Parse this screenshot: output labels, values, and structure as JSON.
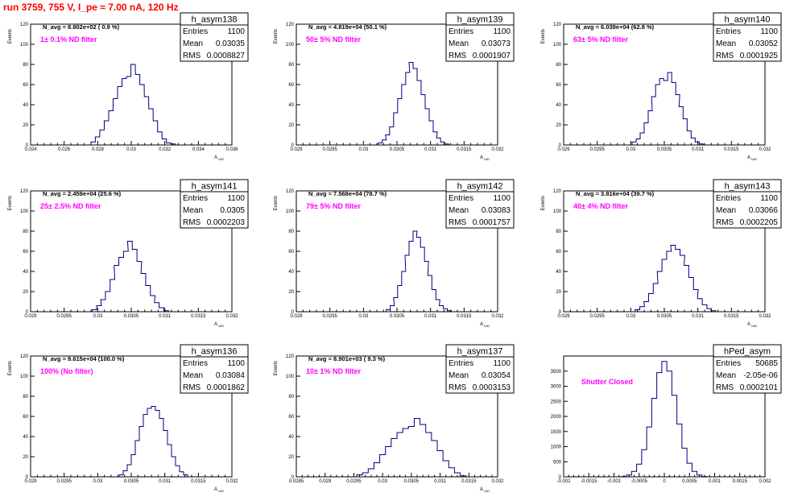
{
  "title": "run 3759,   755 V, I_pe ≈ 7.00 nA, 120 Hz",
  "colors": {
    "title": "#ff0000",
    "annotation": "#ff00ff",
    "hist": "#000080",
    "frame": "#000000"
  },
  "chart_data": [
    {
      "type": "histogram",
      "name": "h_asym138",
      "ylabel": "Events",
      "xlabel": "A_UID",
      "navg": "N_avg = 8.802e+02 ( 0.9 %)",
      "filter": "1± 0.1% ND filter",
      "stats": [
        [
          "Entries",
          "1100"
        ],
        [
          "Mean",
          "0.03035"
        ],
        [
          "RMS",
          "0.0008827"
        ]
      ],
      "xlim": [
        0.024,
        0.036
      ],
      "ylim": [
        0,
        120
      ],
      "xticks": [
        "0.024",
        "0.026",
        "0.028",
        "0.03",
        "0.032",
        "0.034",
        "0.036"
      ],
      "yticks": [
        "0",
        "20",
        "40",
        "60",
        "80",
        "100",
        "120"
      ],
      "x": [
        0.02773,
        0.02799,
        0.02826,
        0.02852,
        0.02879,
        0.02905,
        0.02932,
        0.02958,
        0.02985,
        0.03011,
        0.03038,
        0.03064,
        0.03091,
        0.03117,
        0.03144,
        0.0317,
        0.03197,
        0.03223,
        0.0325
      ],
      "values": [
        3,
        8,
        15,
        24,
        34,
        46,
        58,
        66,
        68,
        80,
        70,
        60,
        48,
        36,
        24,
        13,
        6,
        2,
        1
      ]
    },
    {
      "type": "histogram",
      "name": "h_asym139",
      "ylabel": "Events",
      "xlabel": "A_UID",
      "navg": "N_avg = 4.819e+04 (50.1 %)",
      "filter": "50± 5% ND filter",
      "stats": [
        [
          "Entries",
          "1100"
        ],
        [
          "Mean",
          "0.03073"
        ],
        [
          "RMS",
          "0.0001907"
        ]
      ],
      "xlim": [
        0.029,
        0.032
      ],
      "ylim": [
        0,
        120
      ],
      "xticks": [
        "0.029",
        "0.0295",
        "0.03",
        "0.0305",
        "0.031",
        "0.0315",
        "0.032"
      ],
      "yticks": [
        "0",
        "20",
        "40",
        "60",
        "80",
        "100",
        "120"
      ],
      "x": [
        0.03025,
        0.03031,
        0.03036,
        0.03042,
        0.03048,
        0.03054,
        0.0306,
        0.03066,
        0.03071,
        0.03077,
        0.03083,
        0.03089,
        0.03095,
        0.03101,
        0.03107,
        0.03112,
        0.03118,
        0.03124
      ],
      "values": [
        2,
        5,
        10,
        18,
        32,
        46,
        60,
        72,
        82,
        76,
        64,
        50,
        36,
        24,
        13,
        7,
        3,
        1
      ]
    },
    {
      "type": "histogram",
      "name": "h_asym140",
      "ylabel": "Events",
      "xlabel": "A_UID",
      "navg": "N_avg = 6.039e+04 (62.8 %)",
      "filter": "63± 5% ND filter",
      "stats": [
        [
          "Entries",
          "1100"
        ],
        [
          "Mean",
          "0.03052"
        ],
        [
          "RMS",
          "0.0001925"
        ]
      ],
      "xlim": [
        0.029,
        0.032
      ],
      "ylim": [
        0,
        120
      ],
      "xticks": [
        "0.029",
        "0.0295",
        "0.03",
        "0.0305",
        "0.031",
        "0.0315",
        "0.032"
      ],
      "yticks": [
        "0",
        "20",
        "40",
        "60",
        "80",
        "100",
        "120"
      ],
      "x": [
        0.03005,
        0.03011,
        0.03017,
        0.03023,
        0.03029,
        0.03034,
        0.0304,
        0.03046,
        0.03052,
        0.03058,
        0.03064,
        0.0307,
        0.03075,
        0.03081,
        0.03087,
        0.03093,
        0.03099,
        0.03105
      ],
      "values": [
        3,
        6,
        12,
        22,
        34,
        48,
        60,
        66,
        64,
        72,
        62,
        50,
        38,
        26,
        14,
        7,
        3,
        1
      ]
    },
    {
      "type": "histogram",
      "name": "h_asym141",
      "ylabel": "Events",
      "xlabel": "A_UID",
      "navg": "N_avg = 2.459e+04 (25.6 %)",
      "filter": "25± 2.5% ND filter",
      "stats": [
        [
          "Entries",
          "1100"
        ],
        [
          "Mean",
          "0.0305"
        ],
        [
          "RMS",
          "0.0002203"
        ]
      ],
      "xlim": [
        0.029,
        0.032
      ],
      "ylim": [
        0,
        120
      ],
      "xticks": [
        "0.029",
        "0.0295",
        "0.03",
        "0.0305",
        "0.031",
        "0.0315",
        "0.032"
      ],
      "yticks": [
        "0",
        "20",
        "40",
        "60",
        "80",
        "100",
        "120"
      ],
      "x": [
        0.02995,
        0.03002,
        0.03008,
        0.03015,
        0.03022,
        0.03028,
        0.03035,
        0.03042,
        0.03048,
        0.03055,
        0.03062,
        0.03068,
        0.03075,
        0.03082,
        0.03088,
        0.03095,
        0.03102
      ],
      "values": [
        2,
        6,
        12,
        20,
        32,
        46,
        54,
        60,
        70,
        62,
        50,
        38,
        26,
        16,
        9,
        4,
        1
      ]
    },
    {
      "type": "histogram",
      "name": "h_asym142",
      "ylabel": "Events",
      "xlabel": "A_UID",
      "navg": "N_avg = 7.568e+04 (78.7 %)",
      "filter": "79± 5% ND filter",
      "stats": [
        [
          "Entries",
          "1100"
        ],
        [
          "Mean",
          "0.03083"
        ],
        [
          "RMS",
          "0.0001757"
        ]
      ],
      "xlim": [
        0.029,
        0.032
      ],
      "ylim": [
        0,
        120
      ],
      "xticks": [
        "0.029",
        "0.0295",
        "0.03",
        "0.0305",
        "0.031",
        "0.0315",
        "0.032"
      ],
      "yticks": [
        "0",
        "20",
        "40",
        "60",
        "80",
        "100",
        "120"
      ],
      "x": [
        0.03037,
        0.03043,
        0.03048,
        0.03054,
        0.0306,
        0.03065,
        0.03071,
        0.03077,
        0.03082,
        0.03088,
        0.03094,
        0.03099,
        0.03105,
        0.03111,
        0.03116,
        0.03122,
        0.03128
      ],
      "values": [
        2,
        6,
        14,
        26,
        40,
        56,
        70,
        80,
        74,
        64,
        50,
        36,
        22,
        12,
        6,
        3,
        1
      ]
    },
    {
      "type": "histogram",
      "name": "h_asym143",
      "ylabel": "Events",
      "xlabel": "A_UID",
      "navg": "N_avg = 3.816e+04 (39.7 %)",
      "filter": "40± 4% ND filter",
      "stats": [
        [
          "Entries",
          "1100"
        ],
        [
          "Mean",
          "0.03066"
        ],
        [
          "RMS",
          "0.0002205"
        ]
      ],
      "xlim": [
        0.029,
        0.032
      ],
      "ylim": [
        0,
        120
      ],
      "xticks": [
        "0.029",
        "0.0295",
        "0.03",
        "0.0305",
        "0.031",
        "0.0315",
        "0.032"
      ],
      "yticks": [
        "0",
        "20",
        "40",
        "60",
        "80",
        "100",
        "120"
      ],
      "x": [
        0.0301,
        0.03017,
        0.03023,
        0.0303,
        0.03037,
        0.03043,
        0.0305,
        0.03057,
        0.03063,
        0.0307,
        0.03077,
        0.03083,
        0.0309,
        0.03097,
        0.03103,
        0.0311,
        0.03117,
        0.03123
      ],
      "values": [
        2,
        5,
        10,
        18,
        28,
        40,
        52,
        60,
        66,
        62,
        56,
        46,
        34,
        22,
        13,
        7,
        3,
        1
      ]
    },
    {
      "type": "histogram",
      "name": "h_asym136",
      "ylabel": "Events",
      "xlabel": "A_UID",
      "navg": "N_avg = 9.615e+04 (100.0 %)",
      "filter": "100% (No filter)",
      "stats": [
        [
          "Entries",
          "1100"
        ],
        [
          "Mean",
          "0.03084"
        ],
        [
          "RMS",
          "0.0001862"
        ]
      ],
      "xlim": [
        0.029,
        0.032
      ],
      "ylim": [
        0,
        120
      ],
      "xticks": [
        "0.029",
        "0.0295",
        "0.03",
        "0.0305",
        "0.031",
        "0.0315",
        "0.032"
      ],
      "yticks": [
        "0",
        "20",
        "40",
        "60",
        "80",
        "100",
        "120"
      ],
      "x": [
        0.03035,
        0.03041,
        0.03047,
        0.03053,
        0.03059,
        0.03065,
        0.03071,
        0.03077,
        0.03083,
        0.03089,
        0.03095,
        0.03101,
        0.03107,
        0.03113,
        0.03119,
        0.03125,
        0.03131
      ],
      "values": [
        2,
        6,
        12,
        22,
        36,
        50,
        62,
        68,
        70,
        66,
        58,
        46,
        32,
        20,
        11,
        5,
        2
      ]
    },
    {
      "type": "histogram",
      "name": "h_asym137",
      "ylabel": "Events",
      "xlabel": "A_UID",
      "navg": "N_avg = 8.901e+03 ( 9.3 %)",
      "filter": "10± 1% ND filter",
      "stats": [
        [
          "Entries",
          "1100"
        ],
        [
          "Mean",
          "0.03054"
        ],
        [
          "RMS",
          "0.0003153"
        ]
      ],
      "xlim": [
        0.0285,
        0.032
      ],
      "ylim": [
        0,
        120
      ],
      "xticks": [
        "0.0285",
        "0.029",
        "0.0295",
        "0.03",
        "0.0305",
        "0.031",
        "0.0315",
        "0.032"
      ],
      "yticks": [
        "0",
        "20",
        "40",
        "60",
        "80",
        "100",
        "120"
      ],
      "x": [
        0.0296,
        0.0297,
        0.0298,
        0.0299,
        0.03,
        0.0301,
        0.0302,
        0.0303,
        0.0304,
        0.0305,
        0.0306,
        0.0307,
        0.0308,
        0.0309,
        0.031,
        0.0311,
        0.0312,
        0.0313,
        0.0314
      ],
      "values": [
        2,
        4,
        8,
        14,
        22,
        30,
        38,
        44,
        48,
        50,
        58,
        52,
        44,
        36,
        26,
        16,
        9,
        4,
        1
      ]
    },
    {
      "type": "histogram",
      "name": "hPed_asym",
      "ylabel": "",
      "xlabel": "",
      "navg": "",
      "filter": "Shutter Closed",
      "stats": [
        [
          "Entries",
          "50685"
        ],
        [
          "Mean",
          "-2.05e-06"
        ],
        [
          "RMS",
          "0.0002101"
        ]
      ],
      "xlim": [
        -0.002,
        0.002
      ],
      "ylim": [
        0,
        4000
      ],
      "xticks": [
        "-0.002",
        "-0.0015",
        "-0.001",
        "-0.0005",
        "0",
        "0.0005",
        "0.001",
        "0.0015",
        "0.002"
      ],
      "yticks": [
        "0",
        "500",
        "1000",
        "1500",
        "2000",
        "2500",
        "3000",
        "3500"
      ],
      "x": [
        -0.0008,
        -0.0007,
        -0.0006,
        -0.0005,
        -0.0004,
        -0.0003,
        -0.0002,
        -0.0001,
        0.0,
        0.0001,
        0.0002,
        0.0003,
        0.0004,
        0.0005,
        0.0006,
        0.0007,
        0.0008
      ],
      "values": [
        10,
        60,
        180,
        420,
        900,
        1650,
        2600,
        3450,
        3820,
        3500,
        2700,
        1750,
        950,
        450,
        180,
        60,
        10
      ]
    }
  ]
}
